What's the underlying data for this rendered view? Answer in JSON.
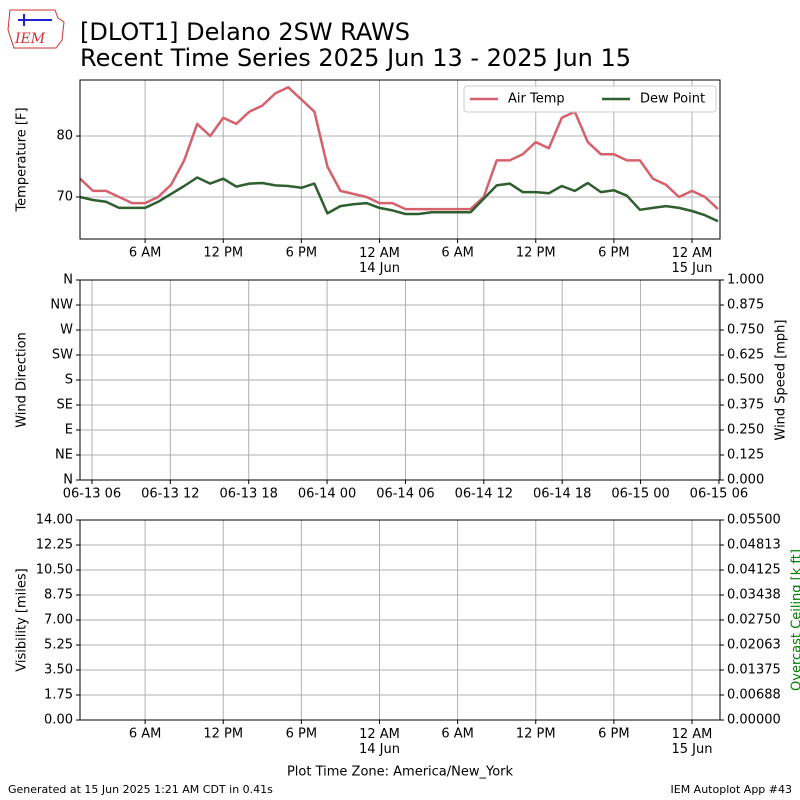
{
  "logo": "IEM",
  "title": [
    "[DLOT1] Delano 2SW RAWS",
    "Recent Time Series 2025 Jun 13 - 2025 Jun 15"
  ],
  "footer": {
    "left": "Generated at 15 Jun 2025 1:21 AM CDT in 0.41s",
    "right": "IEM Autoplot App #43"
  },
  "chart_data": [
    {
      "type": "line",
      "ylabel": "Temperature [F]",
      "grid": true,
      "legend": "upper right",
      "xlim": [
        "06-13 01:00",
        "06-15 02:09"
      ],
      "xticks": [
        {
          "value": "06-13 06",
          "label": "6 AM"
        },
        {
          "value": "06-13 12",
          "label": "12 PM"
        },
        {
          "value": "06-13 18",
          "label": "6 PM"
        },
        {
          "value": "06-14 00",
          "label": "12 AM\n14 Jun"
        },
        {
          "value": "06-14 06",
          "label": "6 AM"
        },
        {
          "value": "06-14 12",
          "label": "12 PM"
        },
        {
          "value": "06-14 18",
          "label": "6 PM"
        },
        {
          "value": "06-15 00",
          "label": "12 AM\n15 Jun"
        }
      ],
      "ylim": [
        63.1,
        89.2
      ],
      "yticks": [
        70,
        80
      ],
      "x": [
        "06-13 01",
        "06-13 02",
        "06-13 03",
        "06-13 04",
        "06-13 05",
        "06-13 06",
        "06-13 07",
        "06-13 08",
        "06-13 09",
        "06-13 10",
        "06-13 11",
        "06-13 12",
        "06-13 13",
        "06-13 14",
        "06-13 15",
        "06-13 16",
        "06-13 17",
        "06-13 18",
        "06-13 19",
        "06-13 20",
        "06-13 21",
        "06-13 22",
        "06-13 23",
        "06-14 00",
        "06-14 01",
        "06-14 02",
        "06-14 03",
        "06-14 04",
        "06-14 05",
        "06-14 06",
        "06-14 07",
        "06-14 08",
        "06-14 09",
        "06-14 10",
        "06-14 11",
        "06-14 12",
        "06-14 13",
        "06-14 14",
        "06-14 15",
        "06-14 16",
        "06-14 17",
        "06-14 18",
        "06-14 19",
        "06-14 20",
        "06-14 21",
        "06-14 22",
        "06-14 23",
        "06-15 00",
        "06-15 01",
        "06-15 02"
      ],
      "series": [
        {
          "name": "Air Temp",
          "color": "#d6606b",
          "values": [
            73,
            71,
            71,
            70,
            69,
            69,
            70,
            72,
            76,
            82,
            80,
            83,
            82,
            84,
            85,
            87,
            88,
            86,
            84,
            75,
            71,
            70.5,
            70,
            69,
            69,
            68,
            68,
            68,
            68,
            68,
            68,
            70,
            76,
            76,
            77,
            79,
            78,
            83,
            84,
            79,
            77,
            77,
            76,
            76,
            73,
            72,
            70,
            71,
            70,
            68
          ]
        },
        {
          "name": "Dew Point",
          "color": "#2f5e2f",
          "values": [
            70,
            69.5,
            69.2,
            68.2,
            68.2,
            68.2,
            69.2,
            70.5,
            71.8,
            73.2,
            72.2,
            73,
            71.7,
            72.2,
            72.3,
            71.9,
            71.8,
            71.5,
            72.2,
            67.3,
            68.5,
            68.8,
            69,
            68.2,
            67.8,
            67.2,
            67.2,
            67.5,
            67.5,
            67.5,
            67.5,
            69.7,
            71.9,
            72.2,
            70.8,
            70.8,
            70.6,
            71.8,
            71,
            72.3,
            70.8,
            71.1,
            70.2,
            67.9,
            68.2,
            68.5,
            68.2,
            67.7,
            67,
            66
          ]
        }
      ]
    },
    {
      "type": "line",
      "ylabel": "Wind Direction",
      "y2label": "Wind Speed [mph]",
      "grid": true,
      "xlim": [
        "06-13 05:05",
        "06-15 06:05"
      ],
      "xticks": [
        "06-13 06",
        "06-13 12",
        "06-13 18",
        "06-14 00",
        "06-14 06",
        "06-14 12",
        "06-14 18",
        "06-15 00",
        "06-15 06"
      ],
      "ylim": [
        0,
        360
      ],
      "yticks": [
        {
          "value": 0,
          "label": "N"
        },
        {
          "value": 45,
          "label": "NE"
        },
        {
          "value": 90,
          "label": "E"
        },
        {
          "value": 135,
          "label": "SE"
        },
        {
          "value": 180,
          "label": "S"
        },
        {
          "value": 225,
          "label": "SW"
        },
        {
          "value": 270,
          "label": "W"
        },
        {
          "value": 315,
          "label": "NW"
        },
        {
          "value": 360,
          "label": "N"
        }
      ],
      "y2lim": [
        0,
        1
      ],
      "y2ticks": [
        {
          "value": 0,
          "label": "0.000"
        },
        {
          "value": 0.125,
          "label": "0.125"
        },
        {
          "value": 0.25,
          "label": "0.250"
        },
        {
          "value": 0.375,
          "label": "0.375"
        },
        {
          "value": 0.5,
          "label": "0.500"
        },
        {
          "value": 0.625,
          "label": "0.625"
        },
        {
          "value": 0.75,
          "label": "0.750"
        },
        {
          "value": 0.875,
          "label": "0.875"
        },
        {
          "value": 1,
          "label": "1.000"
        }
      ]
    },
    {
      "type": "line",
      "ylabel": "Visibility [miles]",
      "y2label": "Overcast Ceiling [k ft]",
      "y2label_color": "#008000",
      "xlabel": "Plot Time Zone: America/New_York",
      "grid": true,
      "xlim": [
        "06-13 01:00",
        "06-15 02:09"
      ],
      "xticks": [
        {
          "value": "06-13 06",
          "label": "6 AM"
        },
        {
          "value": "06-13 12",
          "label": "12 PM"
        },
        {
          "value": "06-13 18",
          "label": "6 PM"
        },
        {
          "value": "06-14 00",
          "label": "12 AM\n14 Jun"
        },
        {
          "value": "06-14 06",
          "label": "6 AM"
        },
        {
          "value": "06-14 12",
          "label": "12 PM"
        },
        {
          "value": "06-14 18",
          "label": "6 PM"
        },
        {
          "value": "06-15 00",
          "label": "12 AM\n15 Jun"
        }
      ],
      "ylim": [
        0,
        14
      ],
      "yticks": [
        {
          "value": 0,
          "label": "0.00"
        },
        {
          "value": 1.75,
          "label": "1.75"
        },
        {
          "value": 3.5,
          "label": "3.50"
        },
        {
          "value": 5.25,
          "label": "5.25"
        },
        {
          "value": 7,
          "label": "7.00"
        },
        {
          "value": 8.75,
          "label": "8.75"
        },
        {
          "value": 10.5,
          "label": "10.50"
        },
        {
          "value": 12.25,
          "label": "12.25"
        },
        {
          "value": 14,
          "label": "14.00"
        }
      ],
      "y2lim": [
        0,
        0.055
      ],
      "y2ticks": [
        {
          "value": 0,
          "label": "0.00000"
        },
        {
          "value": 0.006875,
          "label": "0.00688"
        },
        {
          "value": 0.01375,
          "label": "0.01375"
        },
        {
          "value": 0.020625,
          "label": "0.02063"
        },
        {
          "value": 0.0275,
          "label": "0.02750"
        },
        {
          "value": 0.034375,
          "label": "0.03438"
        },
        {
          "value": 0.04125,
          "label": "0.04125"
        },
        {
          "value": 0.048125,
          "label": "0.04813"
        },
        {
          "value": 0.055,
          "label": "0.05500"
        }
      ]
    }
  ]
}
